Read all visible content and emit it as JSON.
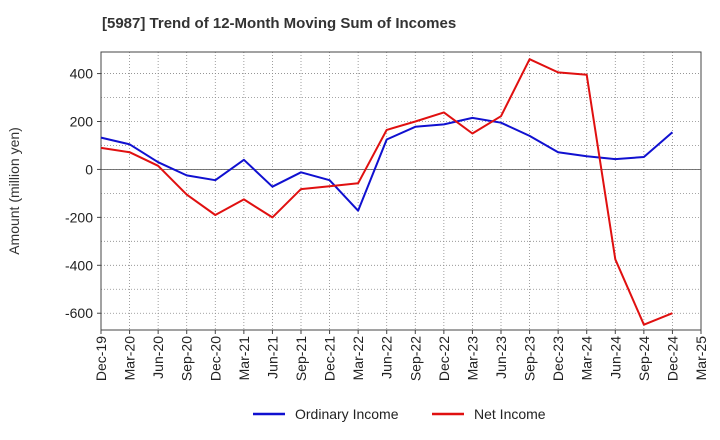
{
  "chart_data": {
    "type": "line",
    "title": "[5987]  Trend of 12-Month Moving Sum of Incomes",
    "xlabel": "",
    "ylabel": "Amount (million yen)",
    "ylim": [
      -670,
      490
    ],
    "yticks": [
      -600,
      -400,
      -200,
      0,
      200,
      400
    ],
    "ytick_labels": [
      "-600",
      "-400",
      "-200",
      "0",
      "200",
      "400"
    ],
    "grid": true,
    "legend_position": "bottom-center",
    "categories": [
      "Dec-19",
      "Mar-20",
      "Jun-20",
      "Sep-20",
      "Dec-20",
      "Mar-21",
      "Jun-21",
      "Sep-21",
      "Dec-21",
      "Mar-22",
      "Jun-22",
      "Sep-22",
      "Dec-22",
      "Mar-23",
      "Jun-23",
      "Sep-23",
      "Dec-23",
      "Mar-24",
      "Jun-24",
      "Sep-24",
      "Dec-24",
      "Mar-25"
    ],
    "series": [
      {
        "name": "Ordinary Income",
        "color": "#1010d0",
        "values": [
          133,
          105,
          30,
          -25,
          -45,
          40,
          -72,
          -12,
          -45,
          -172,
          125,
          178,
          188,
          215,
          195,
          140,
          72,
          55,
          43,
          52,
          155,
          null
        ]
      },
      {
        "name": "Net Income",
        "color": "#e01010",
        "values": [
          90,
          72,
          15,
          -105,
          -190,
          -125,
          -200,
          -82,
          -70,
          -58,
          165,
          200,
          238,
          150,
          222,
          460,
          405,
          395,
          -375,
          -648,
          -600,
          null
        ]
      }
    ]
  }
}
